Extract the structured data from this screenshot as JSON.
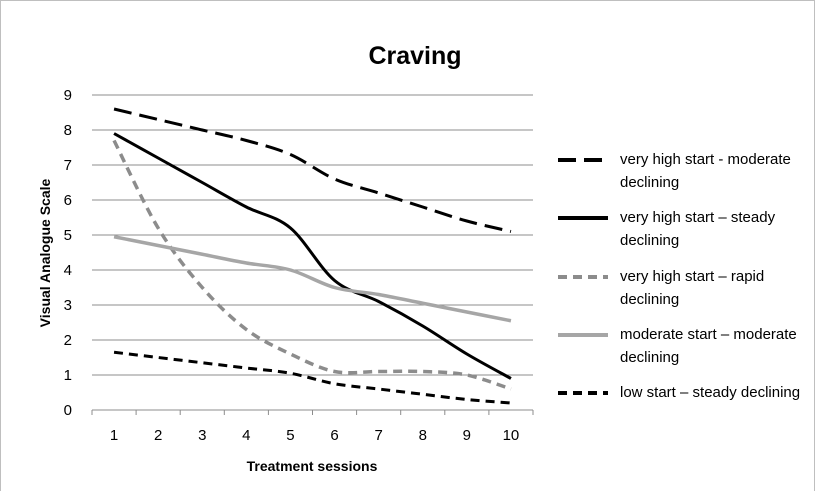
{
  "chart_data": {
    "type": "line",
    "title": "Craving",
    "x_label": "Treatment sessions",
    "y_label": "Visual Analogue Scale",
    "categories": [
      1,
      2,
      3,
      4,
      5,
      6,
      7,
      8,
      9,
      10
    ],
    "ylim": [
      0,
      9
    ],
    "yticks": [
      0,
      1,
      2,
      3,
      4,
      5,
      6,
      7,
      8,
      9
    ],
    "grid": true,
    "legend": "right",
    "series": [
      {
        "name": "very high start - moderate declining",
        "color": "#000000",
        "dash": "long-dash",
        "values": [
          8.6,
          8.3,
          8.0,
          7.7,
          7.3,
          6.6,
          6.2,
          5.8,
          5.4,
          5.1
        ]
      },
      {
        "name": "very high start – steady declining",
        "color": "#000000",
        "dash": "solid",
        "values": [
          7.9,
          7.2,
          6.5,
          5.8,
          5.2,
          3.7,
          3.1,
          2.4,
          1.6,
          0.9
        ]
      },
      {
        "name": "very high start – rapid declining",
        "color": "#8c8c8c",
        "dash": "dash",
        "values": [
          7.7,
          5.2,
          3.5,
          2.3,
          1.6,
          1.1,
          1.1,
          1.1,
          1.0,
          0.6
        ]
      },
      {
        "name": "moderate start – moderate declining",
        "color": "#a6a6a6",
        "dash": "solid",
        "values": [
          4.95,
          4.7,
          4.45,
          4.2,
          4.0,
          3.5,
          3.3,
          3.05,
          2.8,
          2.55
        ]
      },
      {
        "name": "low start – steady declining",
        "color": "#000000",
        "dash": "dash",
        "values": [
          1.65,
          1.5,
          1.35,
          1.2,
          1.05,
          0.75,
          0.6,
          0.45,
          0.3,
          0.2
        ]
      }
    ]
  }
}
